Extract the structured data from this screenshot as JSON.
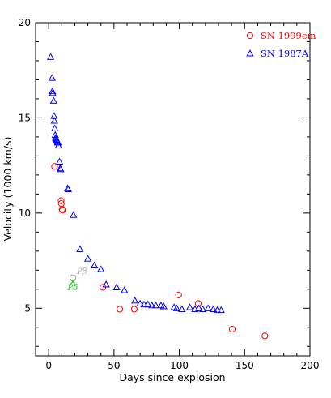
{
  "chart_data": {
    "type": "scatter",
    "title": "",
    "xlabel": "Days since explosion",
    "ylabel": "Velocity (1000 km/s)",
    "xlim": [
      -10,
      200
    ],
    "ylim": [
      2.5,
      20
    ],
    "xticks": [
      0,
      50,
      100,
      150,
      200
    ],
    "yticks": [
      5,
      10,
      15,
      20
    ],
    "grid": false,
    "legend_position": "top-right",
    "series": [
      {
        "name": "SN 1999em",
        "marker": "circle",
        "color": "#ff0000",
        "points": [
          [
            4.5,
            12.45
          ],
          [
            9.5,
            10.65
          ],
          [
            9.7,
            10.5
          ],
          [
            10.3,
            10.2
          ],
          [
            10.6,
            10.15
          ],
          [
            41.5,
            6.1
          ],
          [
            54.5,
            4.95
          ],
          [
            65.5,
            4.95
          ],
          [
            99.5,
            5.7
          ],
          [
            114.5,
            5.25
          ],
          [
            140.5,
            3.9
          ],
          [
            165.5,
            3.55
          ]
        ]
      },
      {
        "name": "SN 1987A",
        "marker": "triangle",
        "color": "#0000ff",
        "points": [
          [
            1.5,
            18.2
          ],
          [
            2.6,
            17.1
          ],
          [
            2.9,
            16.4
          ],
          [
            3.1,
            16.3
          ],
          [
            3.8,
            15.9
          ],
          [
            4.1,
            15.1
          ],
          [
            4.4,
            14.85
          ],
          [
            4.7,
            14.45
          ],
          [
            5.0,
            14.1
          ],
          [
            5.3,
            13.95
          ],
          [
            5.7,
            13.9
          ],
          [
            6.1,
            13.85
          ],
          [
            6.4,
            13.8
          ],
          [
            6.8,
            13.75
          ],
          [
            7.1,
            13.7
          ],
          [
            7.5,
            13.55
          ],
          [
            8.3,
            12.7
          ],
          [
            8.8,
            12.35
          ],
          [
            9.2,
            12.3
          ],
          [
            14.5,
            11.3
          ],
          [
            15.0,
            11.25
          ],
          [
            19.0,
            9.9
          ],
          [
            24.0,
            8.1
          ],
          [
            30.0,
            7.6
          ],
          [
            35.0,
            7.25
          ],
          [
            40.0,
            7.05
          ],
          [
            44.0,
            6.25
          ],
          [
            52.0,
            6.1
          ],
          [
            58.0,
            5.95
          ],
          [
            66.0,
            5.4
          ],
          [
            70.0,
            5.25
          ],
          [
            73.0,
            5.2
          ],
          [
            76.0,
            5.2
          ],
          [
            79.0,
            5.15
          ],
          [
            82.0,
            5.15
          ],
          [
            86.0,
            5.15
          ],
          [
            88.0,
            5.1
          ],
          [
            96.0,
            5.05
          ],
          [
            98.0,
            5.0
          ],
          [
            102.0,
            4.95
          ],
          [
            108.0,
            5.05
          ],
          [
            112.0,
            4.95
          ],
          [
            115.0,
            5.0
          ],
          [
            118.0,
            4.95
          ],
          [
            122.0,
            5.0
          ],
          [
            126.0,
            4.95
          ],
          [
            129.0,
            4.9
          ],
          [
            132.0,
            4.9
          ]
        ]
      },
      {
        "name": "Pβ",
        "marker": "circle",
        "color": "#aaaaaa",
        "points": [
          [
            18.5,
            6.6
          ]
        ]
      },
      {
        "name": "Pδ",
        "marker": "x",
        "color": "#22cc22",
        "points": [
          [
            18.5,
            6.4
          ]
        ]
      }
    ],
    "annotations": [
      {
        "text": "Pβ",
        "x": 21.5,
        "y": 6.8,
        "color": "#aaaaaa"
      },
      {
        "text": "Pδ",
        "x": 14.5,
        "y": 5.95,
        "color": "#22cc22"
      }
    ],
    "legend": [
      {
        "label": "SN 1999em",
        "marker": "circle",
        "color": "#ff0000"
      },
      {
        "label": "SN 1987A",
        "marker": "triangle",
        "color": "#0000ff"
      }
    ]
  }
}
